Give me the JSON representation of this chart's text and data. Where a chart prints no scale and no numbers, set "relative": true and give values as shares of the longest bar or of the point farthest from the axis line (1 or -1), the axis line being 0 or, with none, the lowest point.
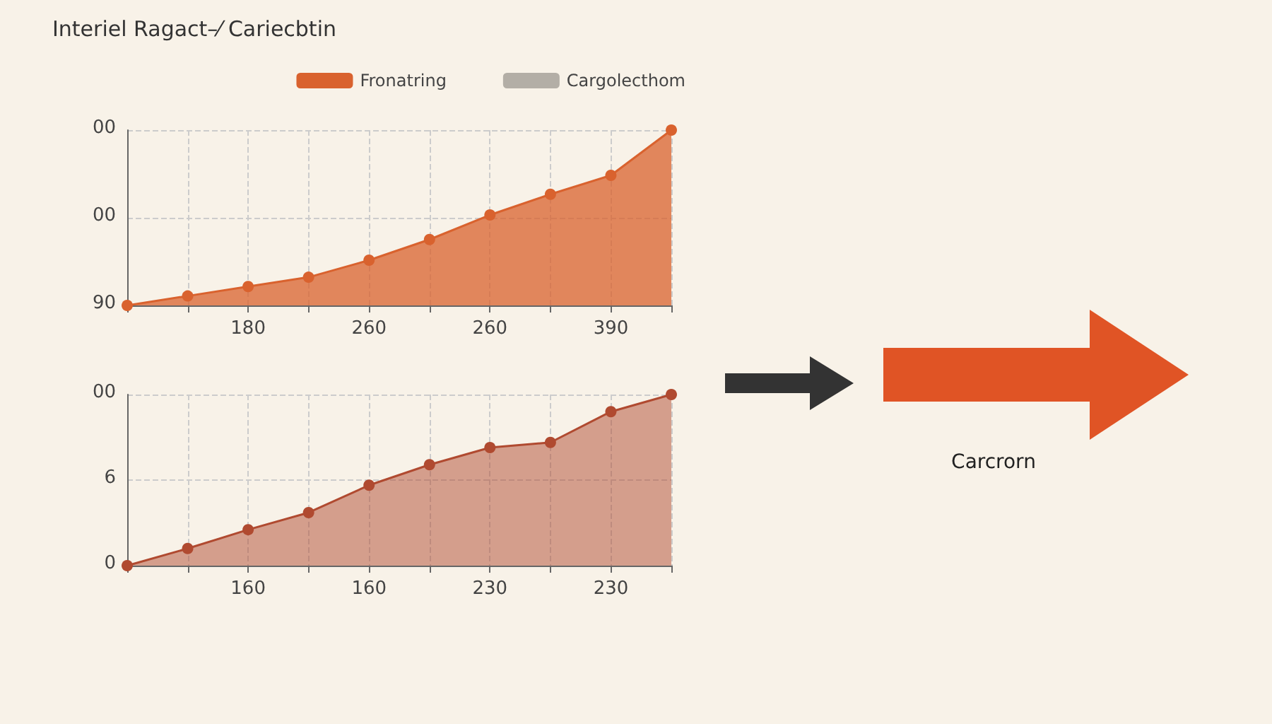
{
  "chart_data": [
    {
      "type": "area",
      "title": "Interiel Ragact–⁄ Cariecbtin",
      "categories": [
        null,
        null,
        "180",
        null,
        "260",
        null,
        "260",
        null,
        "390",
        null
      ],
      "series": [
        {
          "name": "Fronatring",
          "color": "#d9622e",
          "values": [
            0,
            0.054,
            0.108,
            0.161,
            0.258,
            0.376,
            0.516,
            0.634,
            0.742,
            1
          ]
        },
        {
          "name": "Cargolecthom",
          "color": "#b3aea6",
          "values": [
            null,
            null,
            null,
            null,
            null,
            null,
            null,
            null,
            null,
            null
          ]
        }
      ],
      "relative": true,
      "annotations": [
        "90",
        "00",
        "00"
      ],
      "grid": true,
      "legend": "top right",
      "marker": "circle"
    },
    {
      "type": "area",
      "categories": [
        null,
        null,
        "160",
        null,
        "160",
        null,
        "230",
        null,
        "230",
        null
      ],
      "series": [
        {
          "color": "#b04a30",
          "values": [
            0,
            0.1,
            0.21,
            0.31,
            0.47,
            0.59,
            0.69,
            0.72,
            0.9,
            1.0
          ]
        }
      ],
      "relative": true,
      "annotations": [
        "0",
        "6",
        "00"
      ],
      "grid": true,
      "marker": "circle"
    },
    {
      "type": "other",
      "annotations": [
        "Carcrorn"
      ]
    }
  ]
}
